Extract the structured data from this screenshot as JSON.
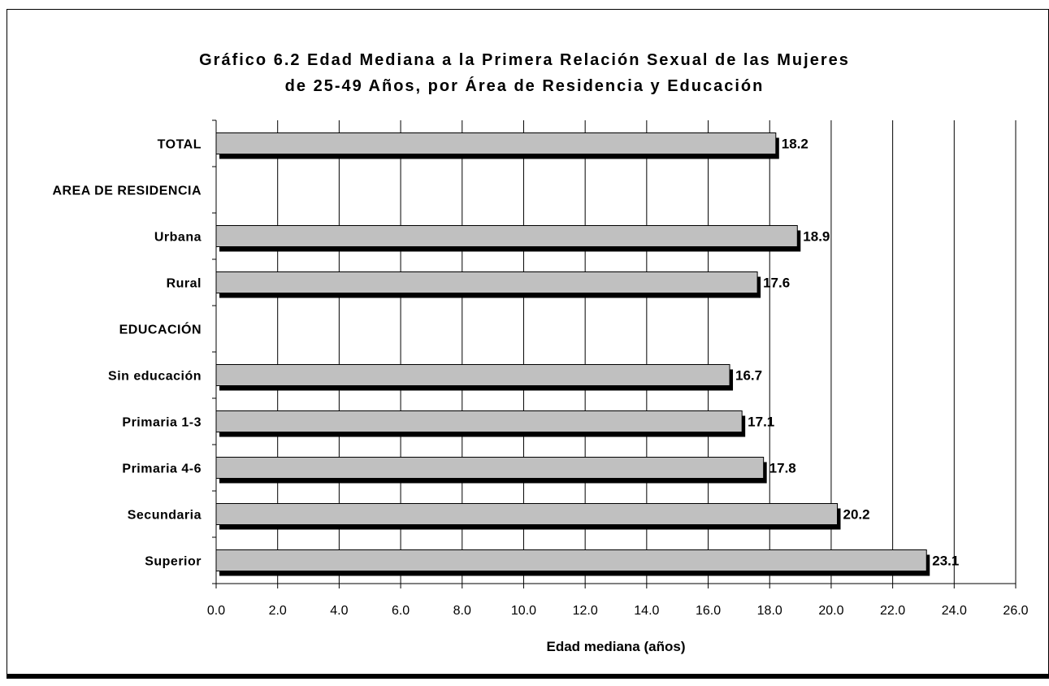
{
  "chart_data": {
    "type": "bar",
    "orientation": "horizontal",
    "title_line1": "Gráfico 6.2  Edad Mediana a la Primera Relación Sexual de las Mujeres",
    "title_line2": "de 25-49 Años, por Área de Residencia y Educación",
    "xlabel": "Edad mediana (años)",
    "ylabel": "",
    "xlim": [
      0,
      26
    ],
    "x_ticks": [
      "0.0",
      "2.0",
      "4.0",
      "6.0",
      "8.0",
      "10.0",
      "12.0",
      "14.0",
      "16.0",
      "18.0",
      "20.0",
      "22.0",
      "24.0",
      "26.0"
    ],
    "categories": [
      "TOTAL",
      "AREA DE RESIDENCIA",
      "Urbana",
      "Rural",
      "EDUCACIÓN",
      "Sin educación",
      "Primaria 1-3",
      "Primaria 4-6",
      "Secundaria",
      "Superior"
    ],
    "values": [
      18.2,
      null,
      18.9,
      17.6,
      null,
      16.7,
      17.1,
      17.8,
      20.2,
      23.1
    ],
    "value_labels": [
      "18.2",
      "",
      "18.9",
      "17.6",
      "",
      "16.7",
      "17.1",
      "17.8",
      "20.2",
      "23.1"
    ],
    "grid": true,
    "bar_color": "#c0c0c0",
    "shadow_color": "#000000"
  }
}
